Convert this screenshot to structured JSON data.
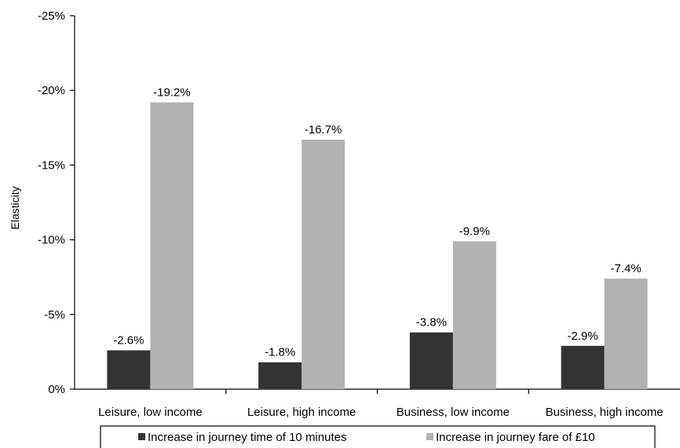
{
  "chart_data": {
    "type": "bar",
    "ylabel": "Elasticity",
    "xlabel": "",
    "ylim": [
      0,
      -25
    ],
    "yticks": [
      "0%",
      "-5%",
      "-10%",
      "-15%",
      "-20%",
      "-25%"
    ],
    "ytick_values": [
      0,
      -5,
      -10,
      -15,
      -20,
      -25
    ],
    "categories": [
      "Leisure, low income",
      "Leisure, high income",
      "Business, low income",
      "Business, high income"
    ],
    "series": [
      {
        "name": "Increase in journey time of 10 minutes",
        "color": "#333333",
        "values": [
          -2.6,
          -1.8,
          -3.8,
          -2.9
        ],
        "labels": [
          "-2.6%",
          "-1.8%",
          "-3.8%",
          "-2.9%"
        ]
      },
      {
        "name": "Increase in journey fare of £10",
        "color": "#b2b2b2",
        "values": [
          -19.2,
          -16.7,
          -9.9,
          -7.4
        ],
        "labels": [
          "-19.2%",
          "-16.7%",
          "-9.9%",
          "-7.4%"
        ]
      }
    ],
    "grid": false,
    "legend_position": "bottom"
  }
}
